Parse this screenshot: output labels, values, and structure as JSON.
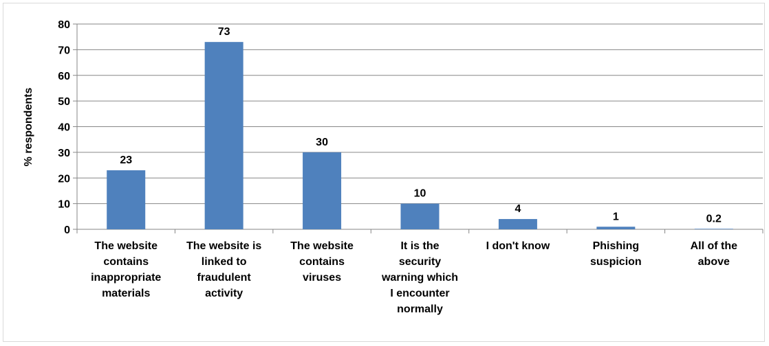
{
  "chart_data": {
    "type": "bar",
    "title": "",
    "xlabel": "",
    "ylabel": "% respondents",
    "ylim": [
      0,
      80
    ],
    "yticks": [
      0,
      10,
      20,
      30,
      40,
      50,
      60,
      70,
      80
    ],
    "grid": true,
    "legend": "none",
    "bar_color": "#4f81bd",
    "categories": [
      [
        "The website",
        "contains",
        "inappropriate",
        "materials"
      ],
      [
        "The website is",
        "linked to",
        "fraudulent",
        "activity"
      ],
      [
        "The website",
        "contains",
        "viruses"
      ],
      [
        "It is the",
        "security",
        "warning which",
        "I encounter",
        "normally"
      ],
      [
        "I don't know"
      ],
      [
        "Phishing",
        "suspicion"
      ],
      [
        "All of the",
        "above"
      ]
    ],
    "values": [
      23,
      73,
      30,
      10,
      4,
      1,
      0.2
    ],
    "data_labels": [
      "23",
      "73",
      "30",
      "10",
      "4",
      "1",
      "0.2"
    ]
  }
}
